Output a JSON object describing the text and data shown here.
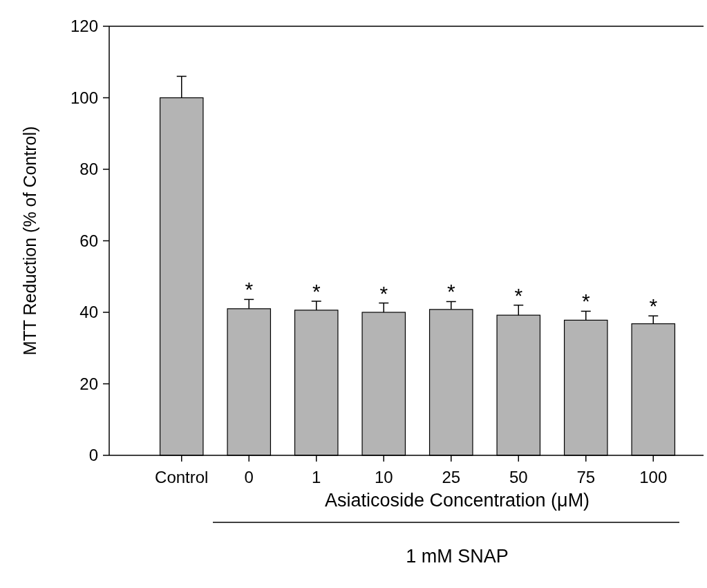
{
  "chart_data": {
    "type": "bar",
    "categories": [
      "Control",
      "0",
      "1",
      "10",
      "25",
      "50",
      "75",
      "100"
    ],
    "values": [
      100,
      41,
      40.6,
      40,
      40.8,
      39.2,
      37.8,
      36.8
    ],
    "errors": [
      6,
      2.6,
      2.5,
      2.6,
      2.2,
      2.8,
      2.5,
      2.2
    ],
    "color": "#b4b4b4",
    "ylim": [
      0,
      120
    ],
    "yticks": [
      0,
      20,
      40,
      60,
      80,
      100,
      120
    ],
    "xlabel": "Asiaticoside Concentration (μM)",
    "ylabel": "MTT Reduction (% of Control)",
    "value_labels": [
      null,
      "*",
      "*",
      "*",
      "*",
      "*",
      "*",
      "*"
    ],
    "annotations": [
      "1 mM SNAP"
    ],
    "grid": false
  }
}
